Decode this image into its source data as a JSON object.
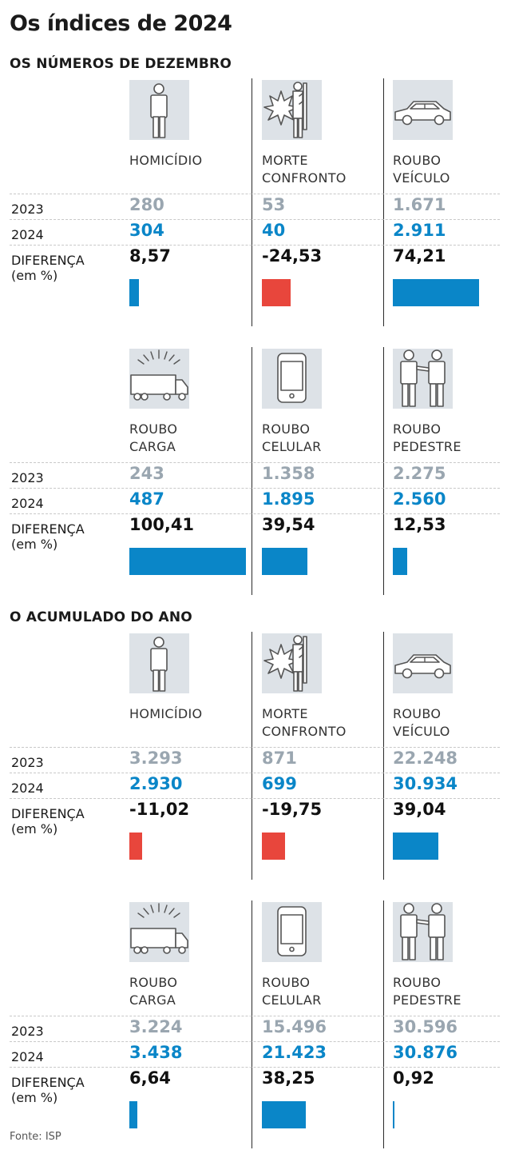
{
  "title": "Os índices de 2024",
  "row_labels": {
    "y2023": "2023",
    "y2024": "2024",
    "diff": "DIFERENÇA\n(em %)"
  },
  "colors": {
    "positive": "#0a86c8",
    "negative": "#e8463c",
    "y2023": "#9aa6b0",
    "y2024": "#0a86c8",
    "icon_bg": "#dde2e7"
  },
  "source": "Fonte: ISP",
  "chart_data": [
    {
      "type": "table",
      "title": "OS NÚMEROS DE DEZEMBRO",
      "groups": [
        {
          "items": [
            {
              "label": "HOMICÍDIO",
              "icon": "person-icon",
              "y2023": "280",
              "y2024": "304",
              "diff": 8.57,
              "diff_text": "8,57"
            },
            {
              "label": "MORTE\nCONFRONTO",
              "icon": "shootout-icon",
              "y2023": "53",
              "y2024": "40",
              "diff": -24.53,
              "diff_text": "-24,53"
            },
            {
              "label": "ROUBO\nVEÍCULO",
              "icon": "car-icon",
              "y2023": "1.671",
              "y2024": "2.911",
              "diff": 74.21,
              "diff_text": "74,21"
            }
          ]
        },
        {
          "items": [
            {
              "label": "ROUBO\nCARGA",
              "icon": "truck-icon",
              "y2023": "243",
              "y2024": "487",
              "diff": 100.41,
              "diff_text": "100,41"
            },
            {
              "label": "ROUBO\nCELULAR",
              "icon": "phone-icon",
              "y2023": "1.358",
              "y2024": "1.895",
              "diff": 39.54,
              "diff_text": "39,54"
            },
            {
              "label": "ROUBO\nPEDESTRE",
              "icon": "pedestrian-robbery-icon",
              "y2023": "2.275",
              "y2024": "2.560",
              "diff": 12.53,
              "diff_text": "12,53"
            }
          ]
        }
      ]
    },
    {
      "type": "table",
      "title": "O ACUMULADO DO ANO",
      "groups": [
        {
          "items": [
            {
              "label": "HOMICÍDIO",
              "icon": "person-icon",
              "y2023": "3.293",
              "y2024": "2.930",
              "diff": -11.02,
              "diff_text": "-11,02"
            },
            {
              "label": "MORTE\nCONFRONTO",
              "icon": "shootout-icon",
              "y2023": "871",
              "y2024": "699",
              "diff": -19.75,
              "diff_text": "-19,75"
            },
            {
              "label": "ROUBO\nVEÍCULO",
              "icon": "car-icon",
              "y2023": "22.248",
              "y2024": "30.934",
              "diff": 39.04,
              "diff_text": "39,04"
            }
          ]
        },
        {
          "items": [
            {
              "label": "ROUBO\nCARGA",
              "icon": "truck-icon",
              "y2023": "3.224",
              "y2024": "3.438",
              "diff": 6.64,
              "diff_text": "6,64"
            },
            {
              "label": "ROUBO\nCELULAR",
              "icon": "phone-icon",
              "y2023": "15.496",
              "y2024": "21.423",
              "diff": 38.25,
              "diff_text": "38,25"
            },
            {
              "label": "ROUBO\nPEDESTRE",
              "icon": "pedestrian-robbery-icon",
              "y2023": "30.596",
              "y2024": "30.876",
              "diff": 0.92,
              "diff_text": "0,92"
            }
          ]
        }
      ]
    }
  ]
}
